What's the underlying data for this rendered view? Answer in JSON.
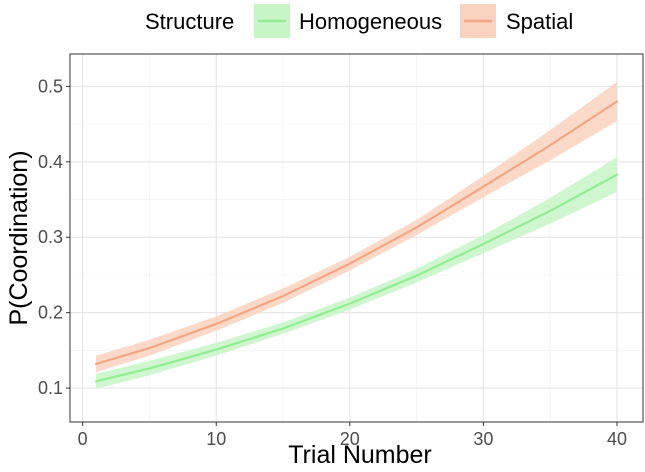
{
  "chart_data": {
    "type": "line",
    "title": "",
    "xlabel": "Trial Number",
    "ylabel": "P(Coordination)",
    "xlim": [
      -0.95,
      41.95
    ],
    "ylim": [
      0.055,
      0.543
    ],
    "x_ticks": [
      0,
      10,
      20,
      30,
      40
    ],
    "y_ticks": [
      0.1,
      0.2,
      0.3,
      0.4,
      0.5
    ],
    "x_tick_labels": [
      "0",
      "10",
      "20",
      "30",
      "40"
    ],
    "y_tick_labels": [
      "0.1",
      "0.2",
      "0.3",
      "0.4",
      "0.5"
    ],
    "grid": true,
    "legend": {
      "title": "Structure",
      "position": "top"
    },
    "x": [
      1,
      5,
      10,
      15,
      20,
      25,
      30,
      35,
      40
    ],
    "series": [
      {
        "name": "Homogeneous",
        "color": "#90EE90",
        "ribbon_color": "#C8F5C8",
        "values": [
          0.109,
          0.126,
          0.151,
          0.179,
          0.212,
          0.249,
          0.291,
          0.335,
          0.383
        ],
        "lower": [
          0.099,
          0.117,
          0.143,
          0.172,
          0.204,
          0.24,
          0.279,
          0.318,
          0.36
        ],
        "upper": [
          0.119,
          0.136,
          0.16,
          0.187,
          0.22,
          0.258,
          0.303,
          0.352,
          0.406
        ]
      },
      {
        "name": "Spatial",
        "color": "#F4A582",
        "ribbon_color": "#F9D2C0",
        "values": [
          0.132,
          0.153,
          0.185,
          0.222,
          0.265,
          0.313,
          0.367,
          0.422,
          0.48
        ],
        "lower": [
          0.121,
          0.143,
          0.176,
          0.213,
          0.256,
          0.303,
          0.353,
          0.402,
          0.454
        ],
        "upper": [
          0.143,
          0.164,
          0.195,
          0.232,
          0.274,
          0.323,
          0.381,
          0.442,
          0.506
        ]
      }
    ]
  }
}
